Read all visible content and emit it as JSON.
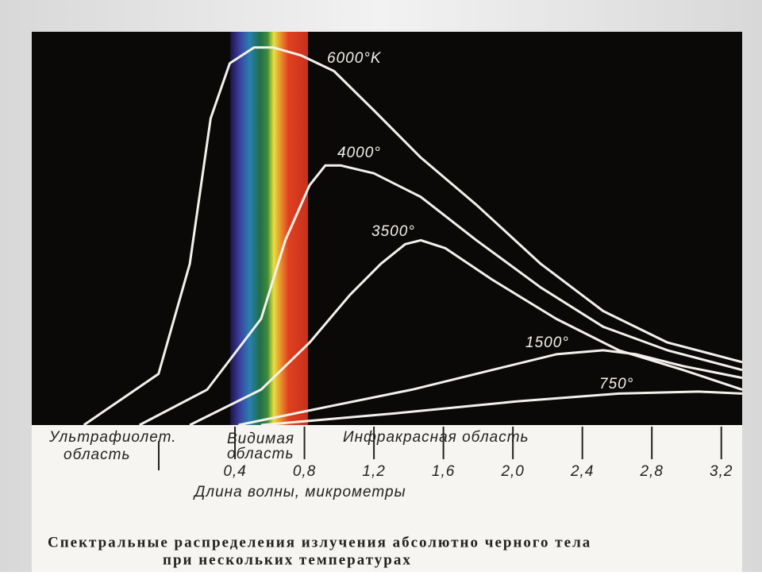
{
  "chart_data": {
    "type": "line",
    "title": "Спектральные распределения излучения абсолютно черного тела",
    "subtitle": "при нескольких температурах",
    "x_label": "Длина волны, микрометры",
    "annotations": [
      [
        "Ультрафиолет.",
        "область"
      ],
      [
        "Видимая",
        "область"
      ],
      [
        "Инфракрасная область"
      ]
    ],
    "xlim": [
      -0.77,
      3.32
    ],
    "ylim": [
      0,
      100
    ],
    "xticks": [
      {
        "value": 0.4,
        "label": "0,4"
      },
      {
        "value": 0.8,
        "label": "0,8"
      },
      {
        "value": 1.2,
        "label": "1,2"
      },
      {
        "value": 1.6,
        "label": "1,6"
      },
      {
        "value": 2.0,
        "label": "2,0"
      },
      {
        "value": 2.4,
        "label": "2,4"
      },
      {
        "value": 2.8,
        "label": "2,8"
      },
      {
        "value": 3.2,
        "label": "3,2"
      }
    ],
    "series": [
      {
        "name": "6000°K",
        "color": "#f4f1ea",
        "x": [
          -0.47,
          -0.04,
          0.14,
          0.26,
          0.37,
          0.51,
          0.62,
          0.78,
          0.97,
          1.2,
          1.47,
          1.79,
          2.16,
          2.52,
          2.89,
          3.32
        ],
        "values": [
          0,
          13,
          41,
          78,
          92,
          96,
          96,
          94,
          90,
          80,
          68,
          56,
          41,
          29,
          21,
          16
        ]
      },
      {
        "name": "4000°",
        "color": "#f4f1ea",
        "x": [
          -0.15,
          0.24,
          0.55,
          0.69,
          0.83,
          0.92,
          1.01,
          1.2,
          1.47,
          1.79,
          2.16,
          2.52,
          2.89,
          3.32
        ],
        "values": [
          0,
          9,
          27,
          47,
          61,
          66,
          66,
          64,
          58,
          47,
          35,
          25,
          19,
          14
        ]
      },
      {
        "name": "3500°",
        "color": "#f4f1ea",
        "x": [
          0.14,
          0.55,
          0.83,
          1.06,
          1.24,
          1.38,
          1.47,
          1.61,
          1.88,
          2.25,
          2.61,
          2.98,
          3.32
        ],
        "values": [
          0,
          9,
          21,
          33,
          41,
          46,
          47,
          45,
          37,
          27,
          19,
          14,
          9
        ]
      },
      {
        "name": "1500°",
        "color": "#f4f1ea",
        "x": [
          0.42,
          0.97,
          1.42,
          1.88,
          2.25,
          2.52,
          2.71,
          2.98,
          3.32
        ],
        "values": [
          0,
          5,
          9,
          14,
          18,
          19,
          18,
          15,
          12
        ]
      },
      {
        "name": "750°",
        "color": "#f4f1ea",
        "x": [
          0.55,
          1.33,
          2.02,
          2.61,
          3.07,
          3.32
        ],
        "values": [
          0,
          3,
          6,
          8,
          8.5,
          8
        ]
      }
    ]
  }
}
